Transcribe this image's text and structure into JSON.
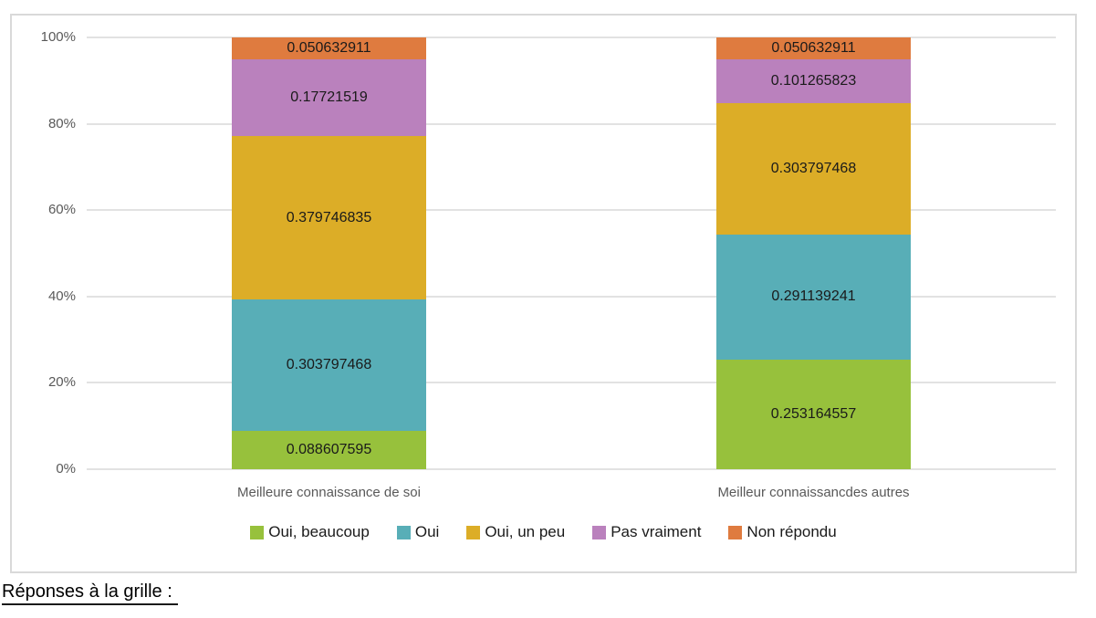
{
  "caption": "Réponses à la grille :",
  "chart_data": {
    "type": "bar",
    "stacked": true,
    "percent_axis": true,
    "title": "",
    "xlabel": "",
    "ylabel": "",
    "grid": true,
    "legend_position": "bottom",
    "categories": [
      "Meilleure connaissance de soi",
      "Meilleur connaissancdes autres"
    ],
    "y_axis": {
      "min": 0,
      "max": 1,
      "ticks": [
        "0%",
        "20%",
        "40%",
        "60%",
        "80%",
        "100%"
      ]
    },
    "series": [
      {
        "name": "Oui, beaucoup",
        "color": "#97c13c",
        "values": [
          0.088607595,
          0.253164557
        ],
        "labels": [
          "0.088607595",
          "0.253164557"
        ]
      },
      {
        "name": "Oui",
        "color": "#58aeb7",
        "values": [
          0.303797468,
          0.291139241
        ],
        "labels": [
          "0.303797468",
          "0.291139241"
        ]
      },
      {
        "name": "Oui, un peu",
        "color": "#dcad27",
        "values": [
          0.379746835,
          0.303797468
        ],
        "labels": [
          "0.379746835",
          "0.303797468"
        ]
      },
      {
        "name": "Pas vraiment",
        "color": "#ba81bd",
        "values": [
          0.17721519,
          0.101265823
        ],
        "labels": [
          "0.17721519",
          "0.101265823"
        ]
      },
      {
        "name": "Non répondu",
        "color": "#df7b3f",
        "values": [
          0.050632911,
          0.050632911
        ],
        "labels": [
          "0.050632911",
          "0.050632911"
        ]
      }
    ]
  }
}
